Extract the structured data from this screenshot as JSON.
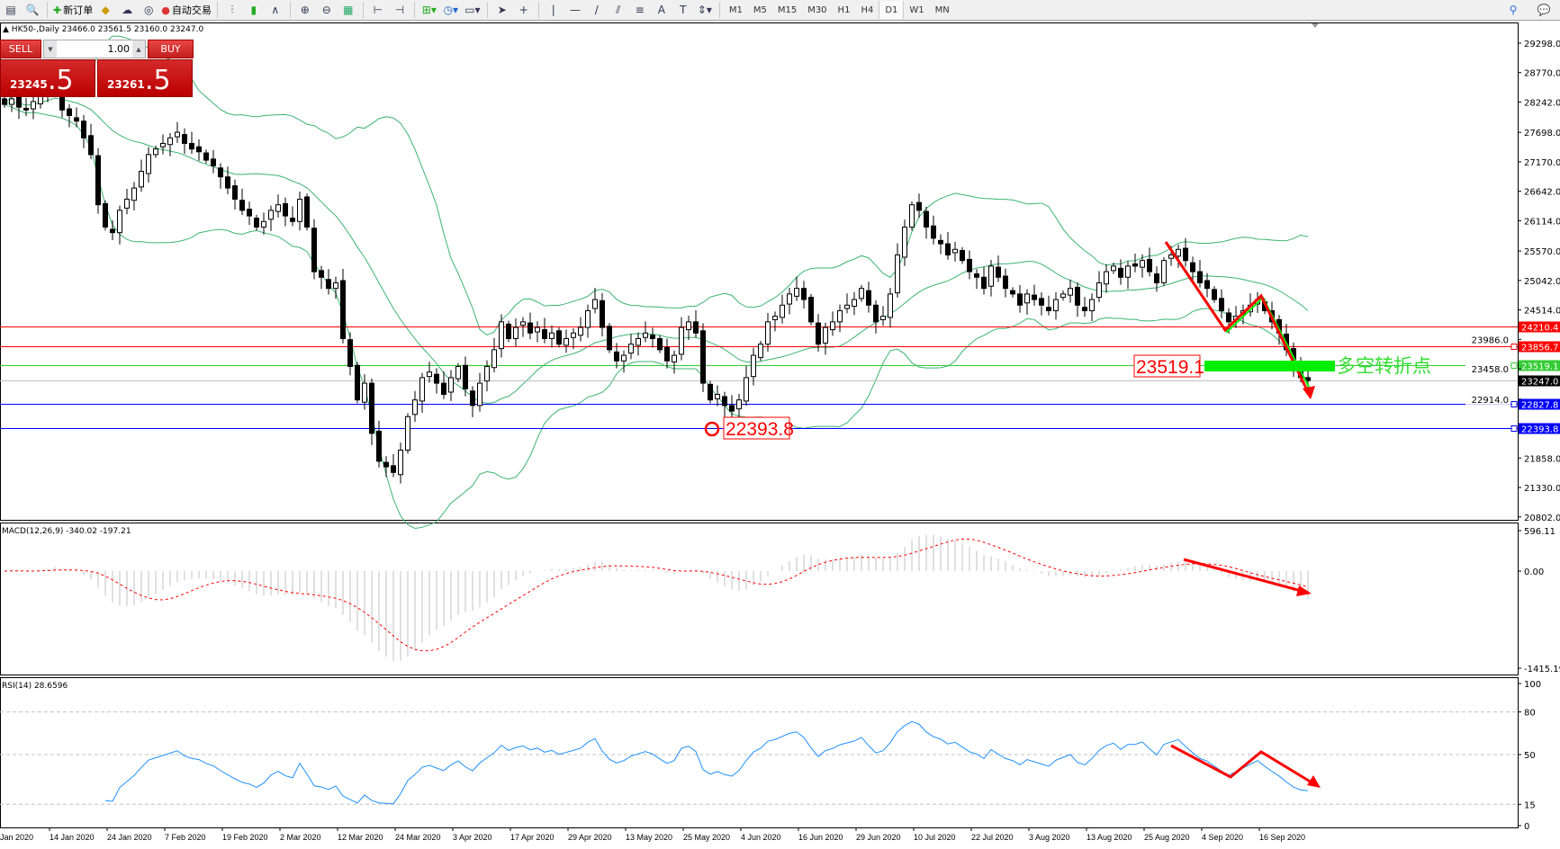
{
  "toolbar": {
    "new_order_label": "新订单",
    "auto_trading_label": "自动交易",
    "timeframes": [
      "M1",
      "M5",
      "M15",
      "M30",
      "H1",
      "H4",
      "D1",
      "W1",
      "MN"
    ],
    "active_timeframe": "D1"
  },
  "chart_info": {
    "symbol_period": "HK50-,Daily",
    "open": "23466.0",
    "high": "23561.5",
    "low": "23160.0",
    "close": "23247.0"
  },
  "trade_panel": {
    "sell_label": "SELL",
    "buy_label": "BUY",
    "volume": "1.00",
    "sell_price_main": "23245",
    "sell_price_big": ".5",
    "buy_price_main": "23261",
    "buy_price_big": ".5"
  },
  "price_axis": [
    "29298.0",
    "28770.0",
    "28242.0",
    "27698.0",
    "27170.0",
    "26642.0",
    "26114.0",
    "25570.0",
    "25042.0",
    "24514.0",
    "23986.0",
    "23458.0",
    "22914.0",
    "21858.0",
    "21330.0",
    "20802.0"
  ],
  "price_lines": [
    {
      "value": "24210.4",
      "color": "#ff0000"
    },
    {
      "value": "23856.7",
      "color": "#ff0000"
    },
    {
      "value": "23519.1",
      "color": "#33cc33"
    },
    {
      "value": "23247.0",
      "color": "#000000",
      "line_color": "#c0c0c0"
    },
    {
      "value": "22827.8",
      "color": "#0000ff"
    },
    {
      "value": "22393.8",
      "color": "#0000ff"
    }
  ],
  "annotations": {
    "pivot_price": "23519.1",
    "pivot_text": "多空转折点",
    "low_price": "22393.8"
  },
  "macd": {
    "label": "MACD(12,26,9) -340.02 -197.21",
    "axis": [
      "596.11",
      "0.00",
      "-1415.19"
    ]
  },
  "rsi": {
    "label": "RSI(14) 28.6596",
    "axis": [
      "100",
      "80",
      "50",
      "15",
      "0"
    ]
  },
  "dates": [
    "Jan 2020",
    "14 Jan 2020",
    "24 Jan 2020",
    "7 Feb 2020",
    "19 Feb 2020",
    "2 Mar 2020",
    "12 Mar 2020",
    "24 Mar 2020",
    "3 Apr 2020",
    "17 Apr 2020",
    "29 Apr 2020",
    "13 May 2020",
    "25 May 2020",
    "4 Jun 2020",
    "16 Jun 2020",
    "29 Jun 2020",
    "10 Jul 2020",
    "22 Jul 2020",
    "3 Aug 2020",
    "13 Aug 2020",
    "25 Aug 2020",
    "4 Sep 2020",
    "16 Sep 2020"
  ],
  "colors": {
    "bands": "#3cb371",
    "rsi_line": "#1e90ff",
    "macd_signal": "#ff0000",
    "macd_hist": "#c0c0c0",
    "arrow_red": "#ff0000",
    "arrow_green": "#00ee00"
  },
  "chart_data": {
    "type": "candlestick",
    "symbol": "HK50-",
    "timeframe": "Daily",
    "ylim": [
      20802,
      29298
    ],
    "indicators": [
      "Bollinger Bands",
      "MACD(12,26,9)",
      "RSI(14)"
    ],
    "closes": [
      28200,
      28300,
      28150,
      28100,
      28250,
      28400,
      28500,
      28600,
      28100,
      28000,
      27900,
      27600,
      27300,
      26400,
      26000,
      25900,
      26300,
      26500,
      26700,
      27000,
      27300,
      27400,
      27500,
      27600,
      27700,
      27500,
      27400,
      27350,
      27200,
      27100,
      26900,
      26700,
      26500,
      26300,
      26200,
      26000,
      26100,
      26300,
      26400,
      26200,
      26100,
      26500,
      26000,
      25200,
      25100,
      24900,
      25000,
      24000,
      23500,
      22900,
      23200,
      22300,
      21800,
      21700,
      21600,
      22000,
      22600,
      22900,
      23300,
      23400,
      23200,
      23000,
      23300,
      23500,
      23100,
      22800,
      23200,
      23500,
      23800,
      24300,
      24000,
      24200,
      24300,
      24100,
      24200,
      24000,
      24100,
      23900,
      24000,
      24100,
      24200,
      24500,
      24700,
      24200,
      23800,
      23600,
      23700,
      23900,
      24000,
      24100,
      24000,
      23800,
      23600,
      23700,
      24200,
      24300,
      24100,
      23200,
      22900,
      23000,
      22800,
      22700,
      22900,
      23300,
      23700,
      23900,
      24300,
      24400,
      24600,
      24800,
      24900,
      24700,
      24300,
      23900,
      24200,
      24300,
      24500,
      24600,
      24700,
      24900,
      24600,
      24300,
      24400,
      24800,
      25500,
      26000,
      26400,
      26300,
      26000,
      25800,
      25700,
      25500,
      25600,
      25400,
      25200,
      25100,
      24900,
      25300,
      25100,
      24900,
      24800,
      24600,
      24800,
      24700,
      24600,
      24500,
      24700,
      24800,
      24900,
      24600,
      24500,
      24700,
      25000,
      25200,
      25300,
      25100,
      25300,
      25300,
      25400,
      25200,
      25000,
      25400,
      25500,
      25600,
      25400,
      25200,
      25000,
      24900,
      24700,
      24500,
      24300,
      24400,
      24500,
      24600,
      24700,
      24500,
      24300,
      24100,
      23800,
      23500,
      23300,
      23247
    ]
  }
}
